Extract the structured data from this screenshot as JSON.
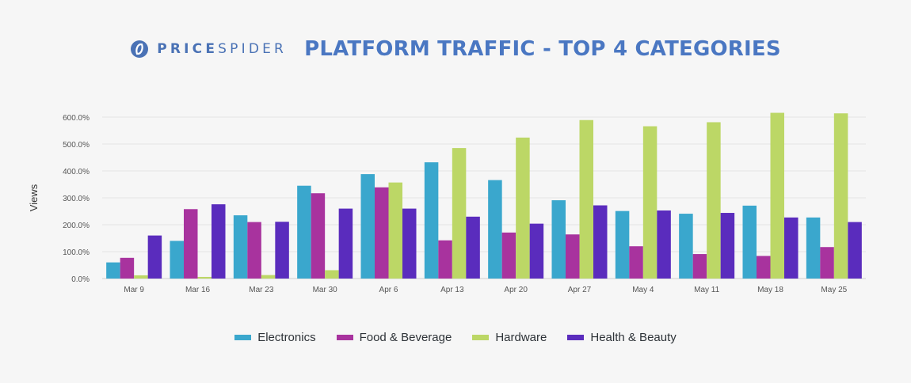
{
  "header": {
    "logo_text_price": "PRICE",
    "logo_text_spider": "SPIDER",
    "title": "PLATFORM TRAFFIC - TOP 4 CATEGORIES"
  },
  "colors": {
    "logo": "#4a72b5",
    "title": "#4a77c2"
  },
  "chart_data": {
    "type": "bar",
    "title": "PLATFORM TRAFFIC - TOP 4 CATEGORIES",
    "xlabel": "",
    "ylabel": "Views",
    "ylim": [
      0,
      600
    ],
    "yticks": [
      "0.0%",
      "100.0%",
      "200.0%",
      "300.0%",
      "400.0%",
      "500.0%",
      "600.0%"
    ],
    "grid": true,
    "legend_position": "bottom",
    "categories": [
      "Mar 9",
      "Mar 16",
      "Mar 23",
      "Mar 30",
      "Apr 6",
      "Apr 13",
      "Apr 20",
      "Apr 27",
      "May 4",
      "May 11",
      "May 18",
      "May 25"
    ],
    "series": [
      {
        "name": "Electronics",
        "color": "#3aa7cd",
        "values": [
          60,
          140,
          235,
          345,
          388,
          432,
          366,
          291,
          251,
          241,
          271,
          227
        ]
      },
      {
        "name": "Food & Beverage",
        "color": "#a8339e",
        "values": [
          77,
          258,
          210,
          317,
          339,
          142,
          171,
          164,
          120,
          91,
          84,
          117
        ]
      },
      {
        "name": "Hardware",
        "color": "#bcd766",
        "values": [
          12,
          6,
          13,
          31,
          357,
          485,
          524,
          589,
          566,
          581,
          616,
          614
        ]
      },
      {
        "name": "Health & Beauty",
        "color": "#5a2cbd",
        "values": [
          160,
          276,
          211,
          260,
          260,
          230,
          204,
          272,
          253,
          244,
          227,
          210
        ]
      }
    ]
  }
}
